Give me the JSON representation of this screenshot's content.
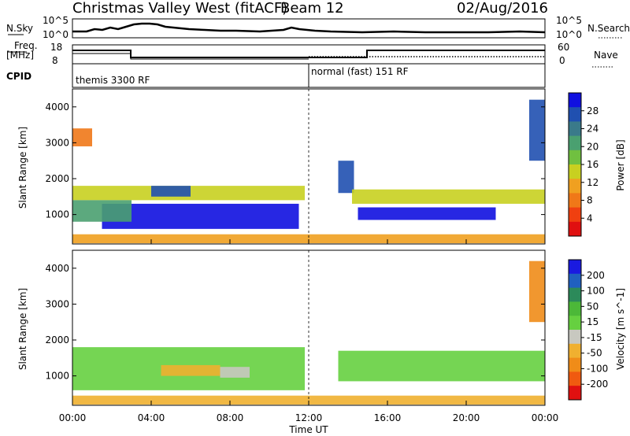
{
  "header": {
    "station": "Christmas Valley West (fitACF)",
    "beam": "Beam 12",
    "date": "02/Aug/2016"
  },
  "top_panels": {
    "nsky_label": "N.Sky",
    "nsky_ticks": [
      "10^5",
      "10^0"
    ],
    "nsky_right_ticks": [
      "10^5",
      "10^0"
    ],
    "nsearch_label": "N.Search",
    "freq_label_1": "Freq.",
    "freq_label_2": "[MHz]",
    "freq_ticks": [
      "18",
      "8"
    ],
    "nave_ticks": [
      "60",
      "0"
    ],
    "nave_label": "Nave",
    "cpid_label": "CPID",
    "cpid_segments": [
      "themis 3300 RF",
      "normal (fast) 151 RF"
    ]
  },
  "colors": {
    "power_scale": [
      "#1010e0",
      "#2050b0",
      "#3a7a8a",
      "#4aa070",
      "#70c040",
      "#c8d020",
      "#f0a020",
      "#f07818",
      "#f04010",
      "#e01010"
    ],
    "velocity_scale": [
      "#1a1ae0",
      "#2060c0",
      "#2c8a5a",
      "#4cb838",
      "#66d040",
      "#c8c8c0",
      "#f0b030",
      "#f08c18",
      "#f05a10",
      "#e01010"
    ]
  },
  "chart_data": [
    {
      "type": "heatmap",
      "name": "power",
      "ylabel": "Slant Range [km]",
      "xlabel": "Time UT",
      "x_ticks": [
        "00:00",
        "04:00",
        "08:00",
        "12:00",
        "16:00",
        "20:00",
        "00:00"
      ],
      "x_range_hours": [
        0,
        24
      ],
      "y_ticks": [
        1000,
        2000,
        3000,
        4000
      ],
      "ylim": [
        180,
        4500
      ],
      "colorbar_label": "Power [dB]",
      "colorbar_ticks": [
        "28",
        "24",
        "20",
        "16",
        "12",
        "8",
        "4"
      ],
      "colorbar_range": [
        0,
        30
      ],
      "bands": [
        {
          "t0": 0.0,
          "t1": 11.8,
          "r0": 1400,
          "r1": 1800,
          "value": 12
        },
        {
          "t0": 1.5,
          "t1": 11.5,
          "r0": 600,
          "r1": 1300,
          "value": 27
        },
        {
          "t0": 4.0,
          "t1": 6.0,
          "r0": 1500,
          "r1": 1800,
          "value": 24
        },
        {
          "t0": 0.0,
          "t1": 3.0,
          "r0": 800,
          "r1": 1400,
          "value": 20
        },
        {
          "t0": 0.0,
          "t1": 24.0,
          "r0": 200,
          "r1": 450,
          "value": 10
        },
        {
          "t0": 13.5,
          "t1": 14.3,
          "r0": 1600,
          "r1": 2500,
          "value": 24
        },
        {
          "t0": 14.2,
          "t1": 24.0,
          "r0": 1300,
          "r1": 1700,
          "value": 12
        },
        {
          "t0": 14.5,
          "t1": 21.5,
          "r0": 850,
          "r1": 1200,
          "value": 27
        },
        {
          "t0": 23.2,
          "t1": 24.0,
          "r0": 2500,
          "r1": 4200,
          "value": 24
        },
        {
          "t0": 0.0,
          "t1": 1.0,
          "r0": 2900,
          "r1": 3400,
          "value": 6
        }
      ]
    },
    {
      "type": "heatmap",
      "name": "velocity",
      "ylabel": "Slant Range [km]",
      "xlabel": "Time UT",
      "x_ticks": [
        "00:00",
        "04:00",
        "08:00",
        "12:00",
        "16:00",
        "20:00",
        "00:00"
      ],
      "x_range_hours": [
        0,
        24
      ],
      "y_ticks": [
        1000,
        2000,
        3000,
        4000
      ],
      "ylim": [
        180,
        4500
      ],
      "colorbar_label": "Velocity [m s^-1]",
      "colorbar_ticks": [
        "200",
        "100",
        "50",
        "15",
        "-15",
        "-50",
        "-100",
        "-200"
      ],
      "colorbar_range": [
        -250,
        250
      ],
      "bands": [
        {
          "t0": 0.0,
          "t1": 11.8,
          "r0": 600,
          "r1": 1800,
          "value": 0
        },
        {
          "t0": 4.5,
          "t1": 7.5,
          "r0": 1000,
          "r1": 1300,
          "value": -60
        },
        {
          "t0": 7.5,
          "t1": 9.0,
          "r0": 950,
          "r1": 1250,
          "value": -30
        },
        {
          "t0": 0.0,
          "t1": 24.0,
          "r0": 200,
          "r1": 450,
          "value": -60
        },
        {
          "t0": 13.5,
          "t1": 24.0,
          "r0": 850,
          "r1": 1700,
          "value": 0
        },
        {
          "t0": 23.2,
          "t1": 24.0,
          "r0": 2500,
          "r1": 4200,
          "value": -120
        }
      ]
    }
  ]
}
